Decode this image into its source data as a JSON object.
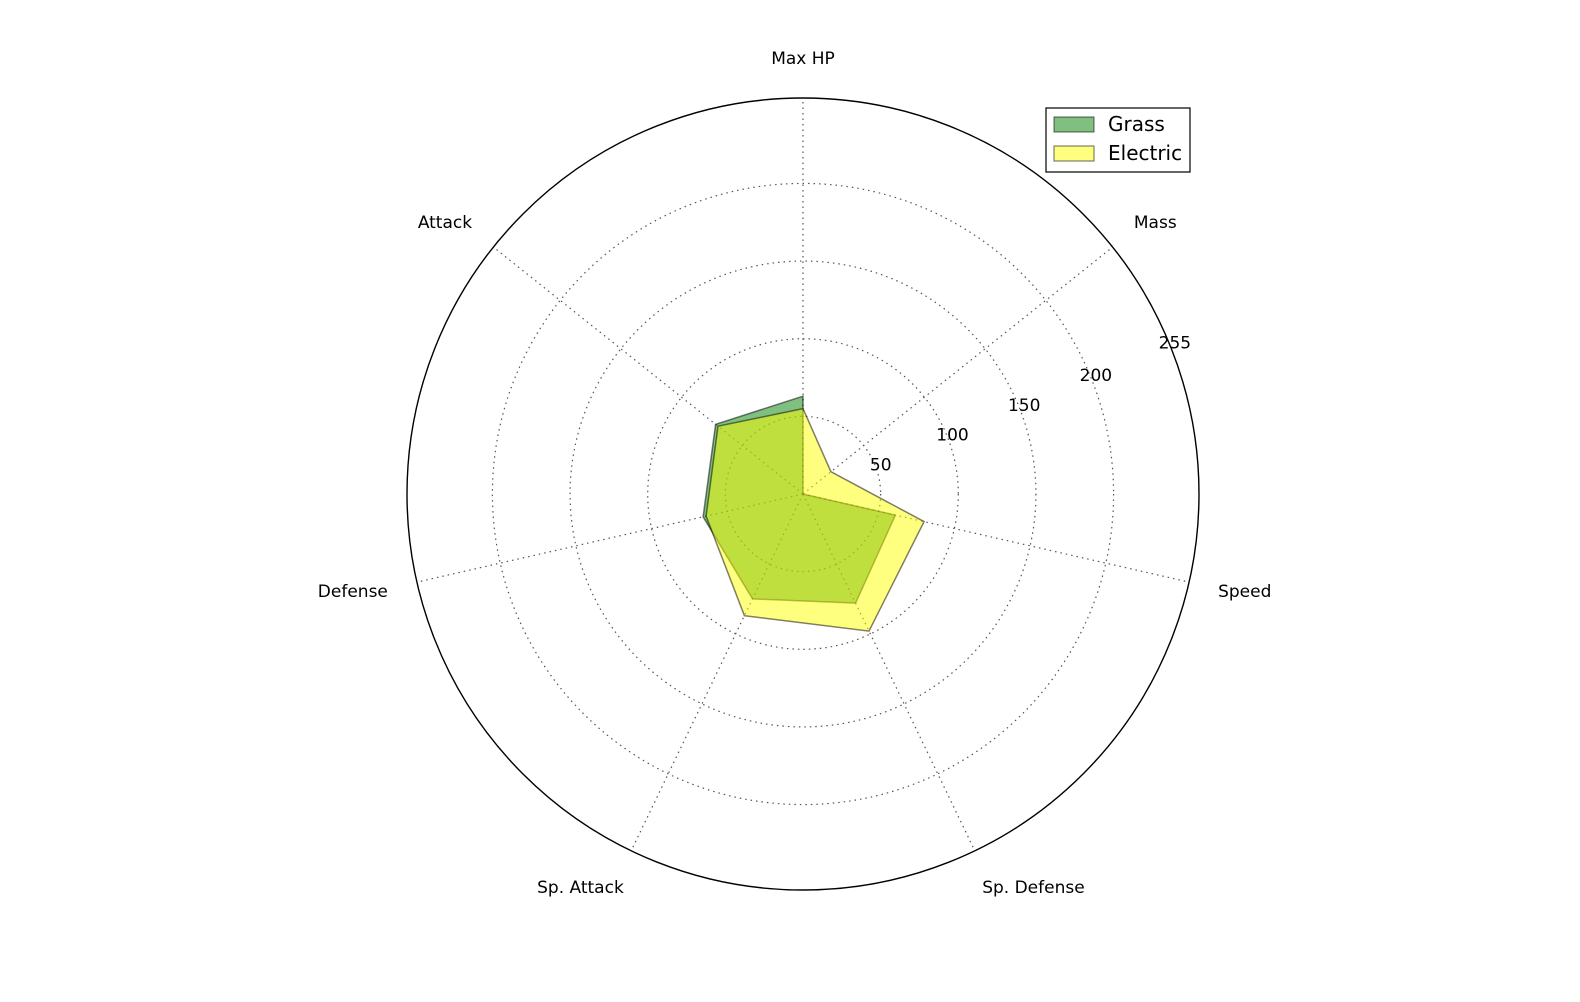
{
  "chart_data": {
    "type": "radar",
    "axes": [
      "Max HP",
      "Mass",
      "Speed",
      "Sp. Defense",
      "Sp. Attack",
      "Defense",
      "Attack"
    ],
    "rlim": [
      0,
      255
    ],
    "rticks": [
      50,
      100,
      150,
      200,
      255
    ],
    "rtick_labels": [
      "50",
      "100",
      "150",
      "200",
      "255"
    ],
    "grid": true,
    "legend_placement": "top-right",
    "series": [
      {
        "name": "Grass",
        "color": "#008000",
        "values": [
          63,
          0,
          61,
          78,
          75,
          66,
          72
        ]
      },
      {
        "name": "Electric",
        "color": "#ffff00",
        "values": [
          55,
          23,
          80,
          98,
          87,
          64,
          70
        ]
      }
    ]
  }
}
